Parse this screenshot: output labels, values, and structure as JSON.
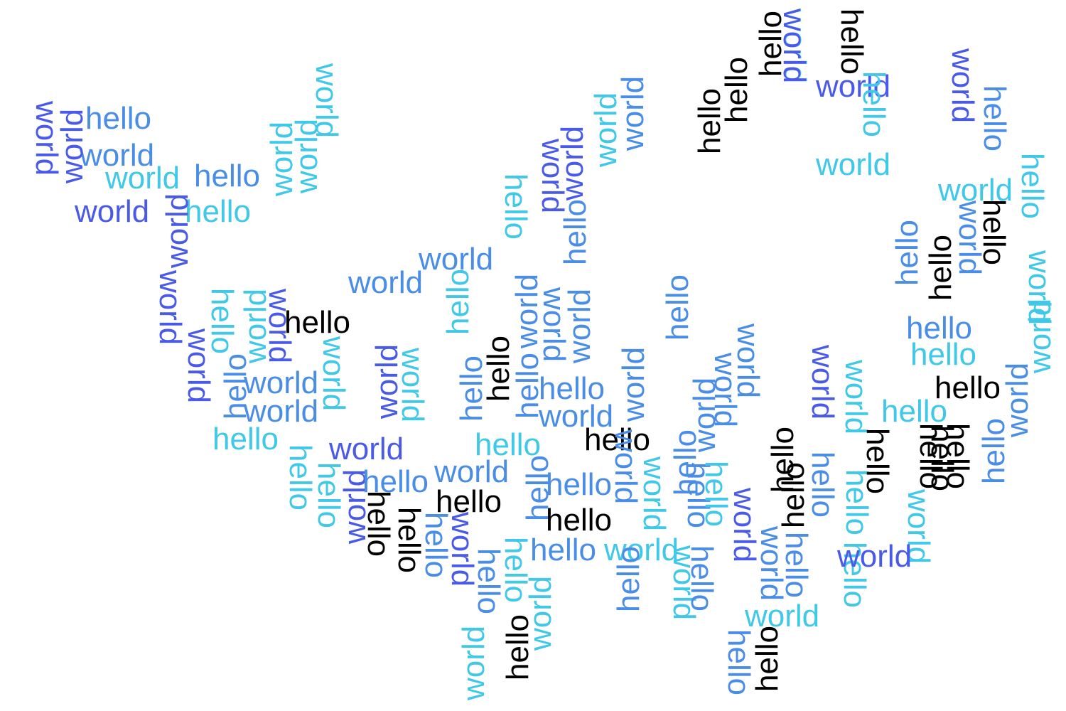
{
  "words": [
    {
      "text": "hello",
      "color": "#4a8de6",
      "rotate": 0
    },
    {
      "text": "world",
      "color": "#4a8de6",
      "rotate": 0
    },
    {
      "text": "world",
      "color": "#40c8e8",
      "rotate": 0
    },
    {
      "text": "hello",
      "color": "#4a8de6",
      "rotate": 0
    },
    {
      "text": "world",
      "color": "#4a5ae8",
      "rotate": 0
    },
    {
      "text": "hello",
      "color": "#40c8e8",
      "rotate": 0
    },
    {
      "text": "world",
      "color": "#4a5ae8",
      "rotate": 90
    },
    {
      "text": "world",
      "color": "#4a5ae8",
      "rotate": -90
    },
    {
      "text": "world",
      "color": "#40c8e8",
      "rotate": 90
    },
    {
      "text": "world",
      "color": "#40c8e8",
      "rotate": -90
    },
    {
      "text": "world",
      "color": "#40c8e8",
      "rotate": -90
    },
    {
      "text": "world",
      "color": "#4a5ae8",
      "rotate": -90
    },
    {
      "text": "world",
      "color": "#4a5ae8",
      "rotate": 90
    },
    {
      "text": "hello",
      "color": "#40c8e8",
      "rotate": 90
    },
    {
      "text": "world",
      "color": "#40c8e8",
      "rotate": -90
    },
    {
      "text": "world",
      "color": "#4a5ae8",
      "rotate": 90
    },
    {
      "text": "hello",
      "color": "#000000",
      "rotate": 0
    },
    {
      "text": "world",
      "color": "#4a5ae8",
      "rotate": 90
    },
    {
      "text": "hello",
      "color": "#4a8de6",
      "rotate": -90
    },
    {
      "text": "world",
      "color": "#4a8de6",
      "rotate": 0
    },
    {
      "text": "world",
      "color": "#4a8de6",
      "rotate": 0
    },
    {
      "text": "hello",
      "color": "#40c8e8",
      "rotate": 0
    },
    {
      "text": "world",
      "color": "#40c8e8",
      "rotate": 90
    },
    {
      "text": "world",
      "color": "#4a5ae8",
      "rotate": -90
    },
    {
      "text": "world",
      "color": "#40c8e8",
      "rotate": 90
    },
    {
      "text": "world",
      "color": "#4a5ae8",
      "rotate": 0
    },
    {
      "text": "hello",
      "color": "#40c8e8",
      "rotate": 90
    },
    {
      "text": "hello",
      "color": "#40c8e8",
      "rotate": 90
    },
    {
      "text": "world",
      "color": "#4a5ae8",
      "rotate": -90
    },
    {
      "text": "hello",
      "color": "#4a8de6",
      "rotate": 0
    },
    {
      "text": "hello",
      "color": "#000000",
      "rotate": 90
    },
    {
      "text": "hello",
      "color": "#000000",
      "rotate": 90
    },
    {
      "text": "hello",
      "color": "#4a8de6",
      "rotate": 90
    },
    {
      "text": "world",
      "color": "#4a5ae8",
      "rotate": 90
    },
    {
      "text": "hello",
      "color": "#4a8de6",
      "rotate": 90
    },
    {
      "text": "world",
      "color": "#4a8de6",
      "rotate": 0
    },
    {
      "text": "world",
      "color": "#4a8de6",
      "rotate": 0
    },
    {
      "text": "hello",
      "color": "#40c8e8",
      "rotate": -90
    },
    {
      "text": "hello",
      "color": "#40c8e8",
      "rotate": 90
    },
    {
      "text": "hello",
      "color": "#4a8de6",
      "rotate": -90
    },
    {
      "text": "hello",
      "color": "#000000",
      "rotate": -90
    },
    {
      "text": "world",
      "color": "#4a8de6",
      "rotate": -90
    },
    {
      "text": "hello",
      "color": "#4a8de6",
      "rotate": -90
    },
    {
      "text": "world",
      "color": "#4a8de6",
      "rotate": 90
    },
    {
      "text": "world",
      "color": "#4a8de6",
      "rotate": -90
    },
    {
      "text": "hello",
      "color": "#4a8de6",
      "rotate": 0
    },
    {
      "text": "world",
      "color": "#4a8de6",
      "rotate": 0
    },
    {
      "text": "hello",
      "color": "#40c8e8",
      "rotate": 0
    },
    {
      "text": "world",
      "color": "#4a8de6",
      "rotate": 0
    },
    {
      "text": "hello",
      "color": "#000000",
      "rotate": 0
    },
    {
      "text": "hello",
      "color": "#4a8de6",
      "rotate": -90
    },
    {
      "text": "hello",
      "color": "#40c8e8",
      "rotate": 90
    },
    {
      "text": "world",
      "color": "#40c8e8",
      "rotate": -90
    },
    {
      "text": "hello",
      "color": "#000000",
      "rotate": -90
    },
    {
      "text": "world",
      "color": "#40c8e8",
      "rotate": -90
    },
    {
      "text": "world",
      "color": "#4a5ae8",
      "rotate": 90
    },
    {
      "text": "hello",
      "color": "#4a8de6",
      "rotate": 0
    },
    {
      "text": "hello",
      "color": "#000000",
      "rotate": 0
    },
    {
      "text": "hello",
      "color": "#4a8de6",
      "rotate": 0
    },
    {
      "text": "world",
      "color": "#40c8e8",
      "rotate": 0
    },
    {
      "text": "world",
      "color": "#4a5ae8",
      "rotate": -90
    },
    {
      "text": "hello",
      "color": "#4a8de6",
      "rotate": -90
    },
    {
      "text": "world",
      "color": "#40c8e8",
      "rotate": -90
    },
    {
      "text": "world",
      "color": "#4a8de6",
      "rotate": -90
    },
    {
      "text": "hello",
      "color": "#4a8de6",
      "rotate": -90
    },
    {
      "text": "hello",
      "color": "#4a8de6",
      "rotate": -90
    },
    {
      "text": "world",
      "color": "#4a8de6",
      "rotate": -90
    },
    {
      "text": "hello",
      "color": "#4a8de6",
      "rotate": -90
    },
    {
      "text": "world",
      "color": "#4a8de6",
      "rotate": -90
    },
    {
      "text": "world",
      "color": "#4a8de6",
      "rotate": 90
    },
    {
      "text": "world",
      "color": "#4a8de6",
      "rotate": 90
    },
    {
      "text": "hello",
      "color": "#000000",
      "rotate": -90
    },
    {
      "text": "hello",
      "color": "#000000",
      "rotate": -90
    },
    {
      "text": "hello",
      "color": "#000000",
      "rotate": -90
    },
    {
      "text": "world",
      "color": "#40c8e8",
      "rotate": 90
    },
    {
      "text": "world",
      "color": "#4a5ae8",
      "rotate": 90
    },
    {
      "text": "hello",
      "color": "#000000",
      "rotate": 0
    },
    {
      "text": "world",
      "color": "#4a8de6",
      "rotate": 90
    },
    {
      "text": "world",
      "color": "#40c8e8",
      "rotate": 90
    },
    {
      "text": "world",
      "color": "#40c8e8",
      "rotate": 90
    },
    {
      "text": "hello",
      "color": "#4a8de6",
      "rotate": 90
    },
    {
      "text": "hello",
      "color": "#4a8de6",
      "rotate": 90
    },
    {
      "text": "hello",
      "color": "#40c8e8",
      "rotate": 90
    },
    {
      "text": "world",
      "color": "#4a5ae8",
      "rotate": 90
    },
    {
      "text": "world",
      "color": "#4a8de6",
      "rotate": 90
    },
    {
      "text": "hello",
      "color": "#000000",
      "rotate": -90
    },
    {
      "text": "hello",
      "color": "#4a8de6",
      "rotate": 90
    },
    {
      "text": "hello",
      "color": "#40c8e8",
      "rotate": 90
    },
    {
      "text": "world",
      "color": "#4a5ae8",
      "rotate": 0
    },
    {
      "text": "hello",
      "color": "#000000",
      "rotate": 90
    },
    {
      "text": "hello",
      "color": "#40c8e8",
      "rotate": 90
    },
    {
      "text": "world",
      "color": "#40c8e8",
      "rotate": 0
    },
    {
      "text": "world",
      "color": "#4a5ae8",
      "rotate": 90
    },
    {
      "text": "hello",
      "color": "#40c8e8",
      "rotate": 90
    },
    {
      "text": "world",
      "color": "#40c8e8",
      "rotate": 90
    },
    {
      "text": "hello",
      "color": "#000000",
      "rotate": 90
    },
    {
      "text": "hello",
      "color": "#4a8de6",
      "rotate": 90
    },
    {
      "text": "world",
      "color": "#40c8e8",
      "rotate": 0
    },
    {
      "text": "hello",
      "color": "#000000",
      "rotate": -90
    },
    {
      "text": "hello",
      "color": "#4a8de6",
      "rotate": 90
    },
    {
      "text": "hello",
      "color": "#000000",
      "rotate": -90
    },
    {
      "text": "hello",
      "color": "#000000",
      "rotate": 90
    },
    {
      "text": "world",
      "color": "#40c8e8",
      "rotate": 90
    },
    {
      "text": "hello",
      "color": "#4a8de6",
      "rotate": -90
    },
    {
      "text": "hello",
      "color": "#000000",
      "rotate": -90
    },
    {
      "text": "hello",
      "color": "#40c8e8",
      "rotate": 90
    },
    {
      "text": "hello",
      "color": "#4a8de6",
      "rotate": 0
    },
    {
      "text": "hello",
      "color": "#40c8e8",
      "rotate": 0
    },
    {
      "text": "world",
      "color": "#4a5ae8",
      "rotate": 90
    },
    {
      "text": "hello",
      "color": "#000000",
      "rotate": 90
    },
    {
      "text": "world",
      "color": "#4a8de6",
      "rotate": 90
    },
    {
      "text": "hello",
      "color": "#000000",
      "rotate": 0
    },
    {
      "text": "hello",
      "color": "#40c8e8",
      "rotate": 0
    },
    {
      "text": "world",
      "color": "#40c8e8",
      "rotate": 90
    },
    {
      "text": "world",
      "color": "#4a8de6",
      "rotate": -90
    },
    {
      "text": "hello",
      "color": "#000000",
      "rotate": 90
    },
    {
      "text": "hello",
      "color": "#000000",
      "rotate": 90
    },
    {
      "text": "hello",
      "color": "#4a8de6",
      "rotate": -90
    },
    {
      "text": "world",
      "color": "#40c8e8",
      "rotate": 0
    },
    {
      "text": "hello",
      "color": "#4a8de6",
      "rotate": 90
    },
    {
      "text": "world",
      "color": "#40c8e8",
      "rotate": -90
    },
    {
      "text": "world",
      "color": "#4a5ae8",
      "rotate": 0
    }
  ]
}
